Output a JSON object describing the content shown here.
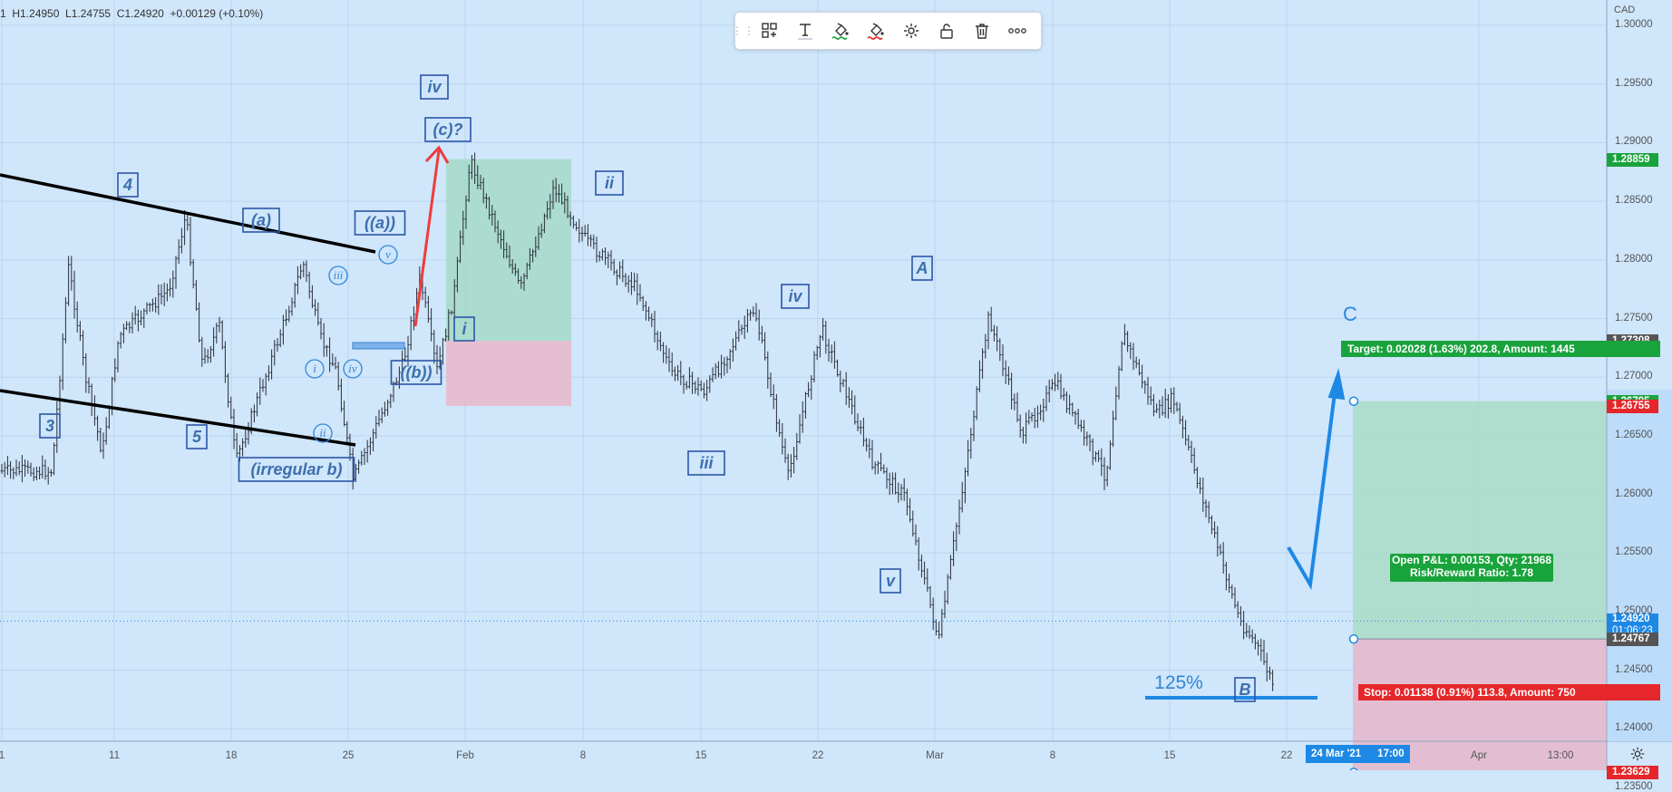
{
  "ohlc_readout": "1  H1.24950  L1.24755  C1.24920  +0.00129 (+0.10%)",
  "currency": "CAD",
  "toolbar": {
    "items": [
      {
        "name": "grip-icon"
      },
      {
        "name": "object-tree-icon"
      },
      {
        "name": "text-icon"
      },
      {
        "name": "fill-color-green-icon"
      },
      {
        "name": "fill-color-red-icon"
      },
      {
        "name": "settings-gear-icon"
      },
      {
        "name": "unlock-icon"
      },
      {
        "name": "trash-icon"
      },
      {
        "name": "more-icon"
      }
    ]
  },
  "price_axis": {
    "ticks": [
      "1.30000",
      "1.29500",
      "1.29000",
      "1.28500",
      "1.28000",
      "1.27500",
      "1.27000",
      "1.26500",
      "1.26000",
      "1.25500",
      "1.25000",
      "1.24500",
      "1.24000",
      "1.23500"
    ],
    "tags": [
      {
        "value": "1.28859",
        "color": "#19a33c"
      },
      {
        "value": "1.27308",
        "color": "#555555"
      },
      {
        "value": "1.26795",
        "color": "#19a33c"
      },
      {
        "value": "1.26755",
        "color": "#e5262a"
      },
      {
        "value": "1.24920",
        "color": "#1e88e5",
        "sub": "01:06:23"
      },
      {
        "value": "1.24767",
        "color": "#555555"
      },
      {
        "value": "1.23629",
        "color": "#e5262a"
      }
    ]
  },
  "time_axis": {
    "labels": [
      {
        "text": "1"
      },
      {
        "text": "11"
      },
      {
        "text": "18"
      },
      {
        "text": "25"
      },
      {
        "text": "Feb"
      },
      {
        "text": "8"
      },
      {
        "text": "15"
      },
      {
        "text": "22"
      },
      {
        "text": "Mar"
      },
      {
        "text": "8"
      },
      {
        "text": "15"
      },
      {
        "text": "22"
      },
      {
        "text": "Apr"
      },
      {
        "text": "13:00"
      }
    ],
    "cursor_date": "24 Mar '21",
    "cursor_time": "17:00"
  },
  "position": {
    "target_label": "Target: 0.02028 (1.63%) 202.8, Amount: 1445",
    "stop_label": "Stop: 0.01138 (0.91%) 113.8, Amount: 750",
    "pnl_line1": "Open P&L: 0.00153, Qty: 21968",
    "pnl_line2": "Risk/Reward Ratio: 1.78"
  },
  "wave_labels": [
    {
      "text": "4",
      "boxed": true
    },
    {
      "text": "3",
      "boxed": true
    },
    {
      "text": "(a)",
      "boxed": true
    },
    {
      "text": "5",
      "boxed": true
    },
    {
      "text": "(irregular b)",
      "boxed": true
    },
    {
      "text": "iii",
      "circled": true
    },
    {
      "text": "i",
      "circled": true
    },
    {
      "text": "ii",
      "circled": true
    },
    {
      "text": "iv",
      "circled": true
    },
    {
      "text": "v",
      "circled": true
    },
    {
      "text": "((a))",
      "boxed": true
    },
    {
      "text": "((b))",
      "boxed": true
    },
    {
      "text": "iv",
      "boxed": true
    },
    {
      "text": "(c)?",
      "boxed": true
    },
    {
      "text": "i",
      "boxed": true
    },
    {
      "text": "ii",
      "boxed": true
    },
    {
      "text": "iii",
      "boxed": true
    },
    {
      "text": "iv",
      "boxed": true
    },
    {
      "text": "v",
      "boxed": true
    },
    {
      "text": "A",
      "boxed": true
    },
    {
      "text": "B",
      "boxed": true
    },
    {
      "text": "C",
      "boxed": false
    },
    {
      "text": "125%",
      "boxed": false
    }
  ],
  "chart_data": {
    "type": "ohlc",
    "symbol_quote_currency": "CAD",
    "ylim": [
      1.231,
      1.302
    ],
    "grid": true,
    "last_price": 1.2492,
    "price_path": [
      {
        "t": "Jan 4",
        "p": 1.262
      },
      {
        "t": "Jan 5",
        "p": 1.2795
      },
      {
        "t": "Jan 6",
        "p": 1.27
      },
      {
        "t": "Jan 7",
        "p": 1.2635
      },
      {
        "t": "Jan 8",
        "p": 1.2735
      },
      {
        "t": "Jan 11",
        "p": 1.2775
      },
      {
        "t": "Jan 12",
        "p": 1.2838
      },
      {
        "t": "Jan 13",
        "p": 1.271
      },
      {
        "t": "Jan 14",
        "p": 1.2745
      },
      {
        "t": "Jan 15",
        "p": 1.2628
      },
      {
        "t": "Jan 18",
        "p": 1.2752
      },
      {
        "t": "Jan 19",
        "p": 1.2798
      },
      {
        "t": "Jan 20",
        "p": 1.2735
      },
      {
        "t": "Jan 21",
        "p": 1.2705
      },
      {
        "t": "Jan 22",
        "p": 1.2612
      },
      {
        "t": "Jan 25",
        "p": 1.2712
      },
      {
        "t": "Jan 26",
        "p": 1.2785
      },
      {
        "t": "Jan 27",
        "p": 1.2705
      },
      {
        "t": "Jan 28",
        "p": 1.2768
      },
      {
        "t": "Jan 29",
        "p": 1.2885
      },
      {
        "t": "Feb 1",
        "p": 1.2775
      },
      {
        "t": "Feb 3",
        "p": 1.2862
      },
      {
        "t": "Feb 5",
        "p": 1.2815
      },
      {
        "t": "Feb 8",
        "p": 1.2775
      },
      {
        "t": "Feb 10",
        "p": 1.2705
      },
      {
        "t": "Feb 12",
        "p": 1.2688
      },
      {
        "t": "Feb 15",
        "p": 1.2758
      },
      {
        "t": "Feb 17",
        "p": 1.2615
      },
      {
        "t": "Feb 19",
        "p": 1.2742
      },
      {
        "t": "Feb 22",
        "p": 1.2628
      },
      {
        "t": "Feb 24",
        "p": 1.2598
      },
      {
        "t": "Feb 26",
        "p": 1.2475
      },
      {
        "t": "Mar 1",
        "p": 1.2752
      },
      {
        "t": "Mar 3",
        "p": 1.2652
      },
      {
        "t": "Mar 5",
        "p": 1.2695
      },
      {
        "t": "Mar 8",
        "p": 1.2615
      },
      {
        "t": "Mar 9",
        "p": 1.2738
      },
      {
        "t": "Mar 11",
        "p": 1.2668
      },
      {
        "t": "Mar 12",
        "p": 1.2682
      },
      {
        "t": "Mar 16",
        "p": 1.2492
      },
      {
        "t": "Mar 17",
        "p": 1.2472
      },
      {
        "t": "Mar 18",
        "p": 1.2438
      },
      {
        "t": "Mar 19",
        "p": 1.2365
      },
      {
        "t": "Mar 22",
        "p": 1.2488
      },
      {
        "t": "Mar 23",
        "p": 1.2492
      }
    ],
    "long_position": {
      "entry": 1.24767,
      "target": 1.26795,
      "stop": 1.23629
    },
    "earlier_position": {
      "entry": 1.2731,
      "target": 1.28859,
      "stop": 1.26755
    }
  }
}
